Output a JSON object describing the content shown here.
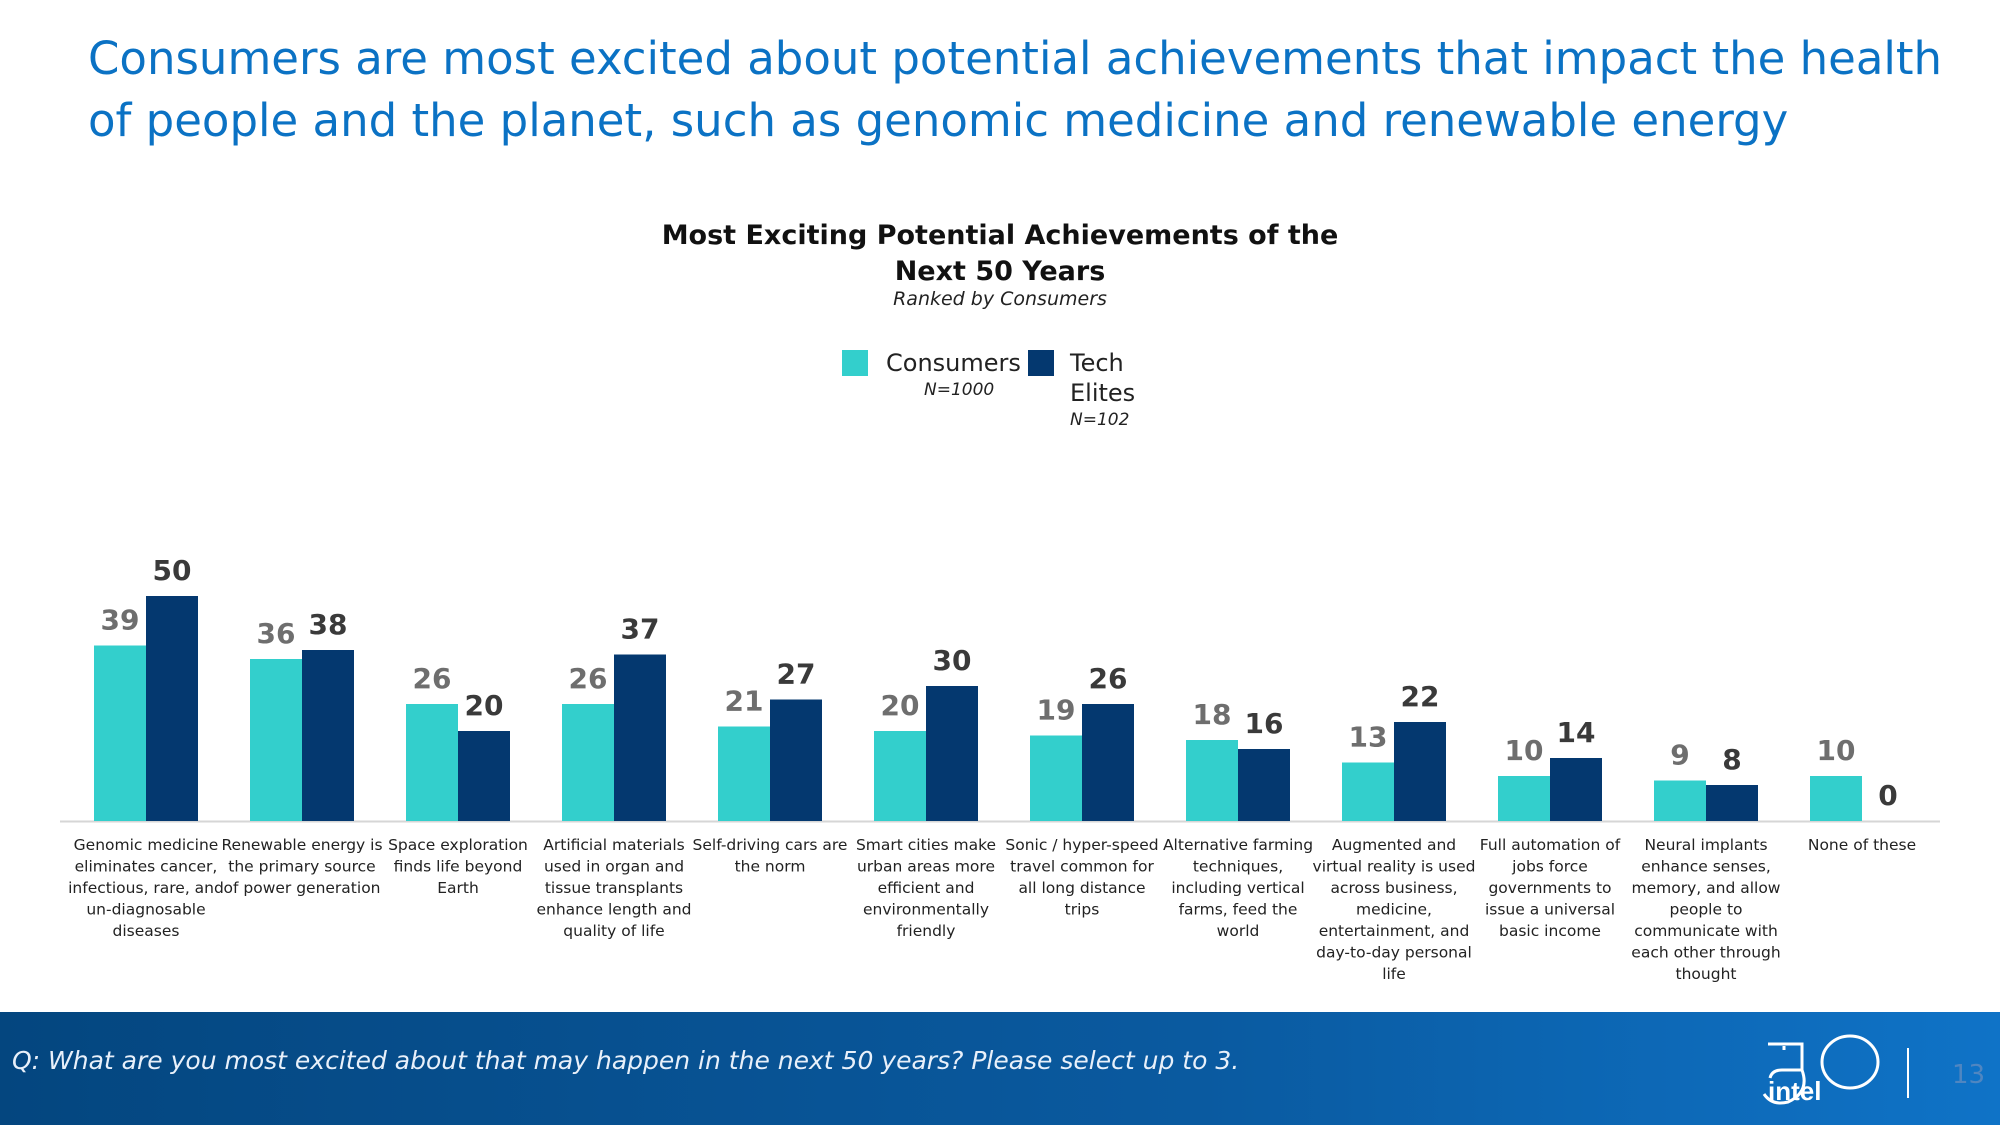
{
  "headline": "Consumers are most excited about potential achievements that impact the health of people and the planet, such as genomic medicine and renewable energy",
  "chart_data": {
    "type": "bar",
    "title_line1": "Most Exciting Potential Achievements of the",
    "title_line2": "Next 50 Years",
    "subtitle": "Ranked by Consumers",
    "categories": [
      "Genomic medicine eliminates cancer, infectious, rare, and un-diagnosable diseases",
      "Renewable energy is the primary source of power generation",
      "Space exploration finds life beyond Earth",
      "Artificial materials used in organ and tissue transplants enhance length and quality of life",
      "Self-driving cars are the norm",
      "Smart cities make urban areas more efficient and environmentally friendly",
      "Sonic / hyper-speed travel common for all long distance trips",
      "Alternative farming techniques, including vertical farms, feed the world",
      "Augmented and virtual reality is used across business, medicine, entertainment, and day-to-day personal life",
      "Full automation of jobs force governments to issue a universal basic income",
      "Neural implants enhance senses, memory, and allow people to communicate with each other through thought",
      "None of these"
    ],
    "category_lines": [
      [
        "Genomic medicine",
        "eliminates cancer,",
        "infectious, rare, and",
        "un-diagnosable",
        "diseases"
      ],
      [
        "Renewable energy is",
        "the primary source",
        "of power generation"
      ],
      [
        "Space exploration",
        "finds life beyond",
        "Earth"
      ],
      [
        "Artificial materials",
        "used in organ and",
        "tissue transplants",
        "enhance length and",
        "quality of life"
      ],
      [
        "Self-driving cars are",
        "the norm"
      ],
      [
        "Smart cities make",
        "urban areas more",
        "efficient and",
        "environmentally",
        "friendly"
      ],
      [
        "Sonic / hyper-speed",
        "travel common for",
        "all long distance",
        "trips"
      ],
      [
        "Alternative farming",
        "techniques,",
        "including vertical",
        "farms, feed the",
        "world"
      ],
      [
        "Augmented and",
        "virtual reality is used",
        "across business,",
        "medicine,",
        "entertainment, and",
        "day-to-day personal",
        "life"
      ],
      [
        "Full automation of",
        "jobs force",
        "governments to",
        "issue a universal",
        "basic income"
      ],
      [
        "Neural implants",
        "enhance senses,",
        "memory, and allow",
        "people to",
        "communicate with",
        "each other through",
        "thought"
      ],
      [
        "None of these"
      ]
    ],
    "series": [
      {
        "name": "Consumers",
        "sample": "N=1000",
        "color": "#33cfcc",
        "label_color": "#6e6e6e",
        "values": [
          39,
          36,
          26,
          26,
          21,
          20,
          19,
          18,
          13,
          10,
          9,
          10
        ]
      },
      {
        "name": "Tech Elites",
        "name_lines": [
          "Tech",
          "Elites"
        ],
        "sample": "N=102",
        "color": "#04386f",
        "label_color": "#3a3a3a",
        "values": [
          50,
          38,
          20,
          37,
          27,
          30,
          26,
          16,
          22,
          14,
          8,
          0
        ]
      }
    ],
    "ylim": [
      0,
      50
    ],
    "grid": false,
    "legend_position": "top-center"
  },
  "footer": {
    "question": "Q: What are you most excited about that may happen in the next 50 years? Please select up to 3.",
    "logo_text": "intel",
    "logo_number": "50",
    "page_number": "13"
  }
}
